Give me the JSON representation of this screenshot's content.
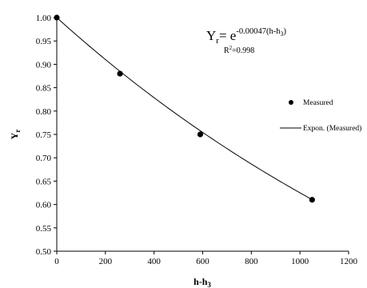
{
  "chart_data": {
    "type": "scatter",
    "xlabel": "h-h",
    "xlabel_sub": "3",
    "ylabel": "Y",
    "ylabel_sub": "r",
    "xlim": [
      0,
      1200
    ],
    "ylim": [
      0.5,
      1.0
    ],
    "xticks": [
      0,
      200,
      400,
      600,
      800,
      1000,
      1200
    ],
    "yticks": [
      0.5,
      0.55,
      0.6,
      0.65,
      0.7,
      0.75,
      0.8,
      0.85,
      0.9,
      0.95,
      1.0
    ],
    "xtick_labels": [
      "0",
      "200",
      "400",
      "600",
      "800",
      "1000",
      "1200"
    ],
    "ytick_labels": [
      "0.50",
      "0.55",
      "0.60",
      "0.65",
      "0.70",
      "0.75",
      "0.80",
      "0.85",
      "0.90",
      "0.95",
      "1.00"
    ],
    "grid": false,
    "legend_position": "right",
    "series": [
      {
        "name": "Measured",
        "kind": "scatter",
        "color": "#000000",
        "x": [
          0,
          260,
          590,
          1050
        ],
        "y": [
          1.0,
          0.88,
          0.75,
          0.61
        ]
      },
      {
        "name": "Expon. (Measured)",
        "kind": "line",
        "color": "#000000",
        "coefficient": 0.00047,
        "x_range": [
          0,
          1050
        ]
      }
    ],
    "annotation": {
      "base": "Y",
      "base_sub": "r",
      "eq": "= e",
      "exponent": "-0.00047(h-h",
      "exponent_sub": "3",
      "exponent_close": ")",
      "r2_label": "R",
      "r2_sup": "2",
      "r2_value": "=0.998"
    }
  }
}
